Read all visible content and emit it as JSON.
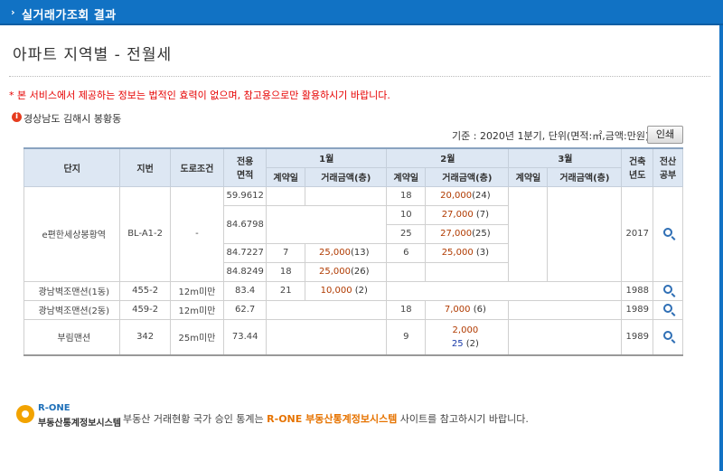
{
  "header": {
    "title": "실거래가조회 결과",
    "arrow": "›"
  },
  "page_title": "아파트 지역별 - 전월세",
  "notice": "* 본 서비스에서 제공하는 정보는 법적인 효력이 없으며, 참고용으로만 활용하시기 바랍니다.",
  "location": "경상남도 김해시 봉황동",
  "basis": "기준 : 2020년 1분기, 단위(면적:㎡,금액:만원)",
  "print_label": "인쇄",
  "table": {
    "headers": {
      "complex": "단지",
      "lot": "지번",
      "road": "도로조건",
      "area": "전용\n면적",
      "month1": "1월",
      "month2": "2월",
      "month3": "3월",
      "contract_day": "계약일",
      "amount": "거래금액(층)",
      "built": "건축\n년도",
      "ledger": "전산\n공부"
    },
    "rows": [
      {
        "complex": "e편한세상봉황역",
        "lot": "BL-A1-2",
        "road": "-",
        "built": "2017",
        "sub": [
          {
            "area": "59.9612",
            "m1_day": "",
            "m1_amt": "",
            "m1_floor": "",
            "m2_day": "18",
            "m2_amt": "20,000",
            "m2_floor": "(24)"
          },
          {
            "area": "84.6798",
            "m1_day": "",
            "m1_amt": "",
            "m1_floor": "",
            "m2_day": "10",
            "m2_amt": "27,000",
            "m2_floor": "(7)"
          },
          {
            "area": "",
            "m1_day": "",
            "m1_amt": "",
            "m1_floor": "",
            "m2_day": "25",
            "m2_amt": "27,000",
            "m2_floor": "(25)"
          },
          {
            "area": "84.7227",
            "m1_day": "7",
            "m1_amt": "25,000",
            "m1_floor": "(13)",
            "m2_day": "6",
            "m2_amt": "25,000",
            "m2_floor": "(3)"
          },
          {
            "area": "84.8249",
            "m1_day": "18",
            "m1_amt": "25,000",
            "m1_floor": "(26)",
            "m2_day": "",
            "m2_amt": "",
            "m2_floor": ""
          }
        ]
      },
      {
        "complex": "광남벽조맨션(1동)",
        "lot": "455-2",
        "road": "12m미만",
        "area": "83.4",
        "m1_day": "21",
        "m1_amt": "10,000",
        "m1_floor": "(2)",
        "m2_day": "",
        "m2_amt": "",
        "m2_floor": "",
        "built": "1988"
      },
      {
        "complex": "광남벽조맨션(2동)",
        "lot": "459-2",
        "road": "12m미만",
        "area": "62.7",
        "m1_day": "",
        "m1_amt": "",
        "m1_floor": "",
        "m2_day": "18",
        "m2_amt": "7,000",
        "m2_floor": "(6)",
        "built": "1989"
      },
      {
        "complex": "부림맨션",
        "lot": "342",
        "road": "25m미만",
        "area": "73.44",
        "m1_day": "",
        "m1_amt": "",
        "m1_floor": "",
        "m2_day": "9",
        "m2_amt": "2,000",
        "m2_amt2": "25",
        "m2_floor": "(2)",
        "built": "1989"
      }
    ]
  },
  "footer": {
    "logo_top": "R-ONE",
    "logo_bottom": "부동산통계정보시스템",
    "text_pre": "부동산 거래현황 국가 승인 통계는 ",
    "text_highlight": "R-ONE 부동산통계정보시스템",
    "text_post": " 사이트를 참고하시기 바랍니다."
  },
  "colors": {
    "header_bg": "#1172c4",
    "notice": "#e60000",
    "amount": "#b03a00",
    "highlight": "#e67300"
  }
}
